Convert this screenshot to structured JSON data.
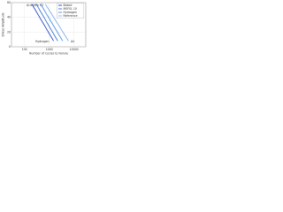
{
  "chart_data": {
    "type": "line",
    "title": "Al-6 MPa H2",
    "x_label": "Number of Cycles to Failure",
    "y_label": "Stress Amplitude",
    "log_x": true,
    "xlim": [
      30,
      30000
    ],
    "xticks": [
      100,
      1000,
      10000
    ],
    "ylim": [
      0,
      60
    ],
    "yticks": [
      0,
      20,
      40,
      60
    ],
    "grid": true,
    "legend": "upper-right",
    "series": [
      {
        "name": "Baked",
        "color": "#1f3fbf",
        "x": [
          200,
          1500
        ],
        "values": [
          58,
          8
        ]
      },
      {
        "name": "MSFSL 10",
        "color": "#2f6fd8",
        "x": [
          300,
          2200
        ],
        "values": [
          58,
          8
        ]
      },
      {
        "name": "Hydrogen",
        "color": "#4d8fe6",
        "x": [
          450,
          3500
        ],
        "values": [
          58,
          8
        ]
      },
      {
        "name": "Reference",
        "color": "#7fb0f0",
        "x": [
          700,
          6000
        ],
        "values": [
          58,
          8
        ]
      }
    ],
    "annotations": [
      "Hydrogen",
      "Air"
    ]
  }
}
